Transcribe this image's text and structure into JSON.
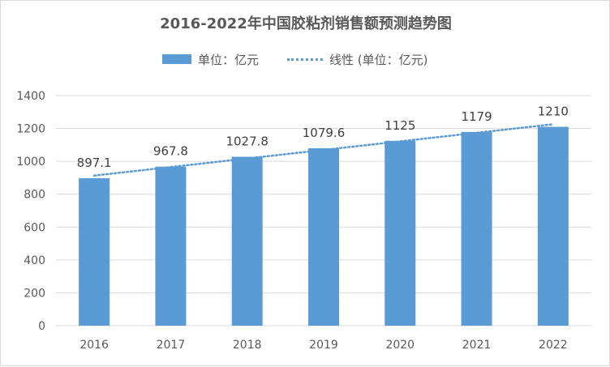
{
  "chart_data": {
    "type": "bar",
    "title": "2016-2022年中国胶粘剂销售额预测趋势图",
    "categories": [
      "2016",
      "2017",
      "2018",
      "2019",
      "2020",
      "2021",
      "2022"
    ],
    "series": [
      {
        "name": "单位：亿元",
        "type": "bar",
        "values": [
          897.1,
          967.8,
          1027.8,
          1079.6,
          1125,
          1179,
          1210
        ],
        "color": "#5b9bd5"
      }
    ],
    "trendline": {
      "name": "线性 (单位：亿元)",
      "style": "dotted",
      "color": "#5b9bd5"
    },
    "ylim": [
      0,
      1400
    ],
    "yticks": [
      0,
      200,
      400,
      600,
      800,
      1000,
      1200,
      1400
    ],
    "grid": true,
    "legend_position": "top",
    "data_labels": [
      "897.1",
      "967.8",
      "1027.8",
      "1079.6",
      "1125",
      "1179",
      "1210"
    ]
  }
}
